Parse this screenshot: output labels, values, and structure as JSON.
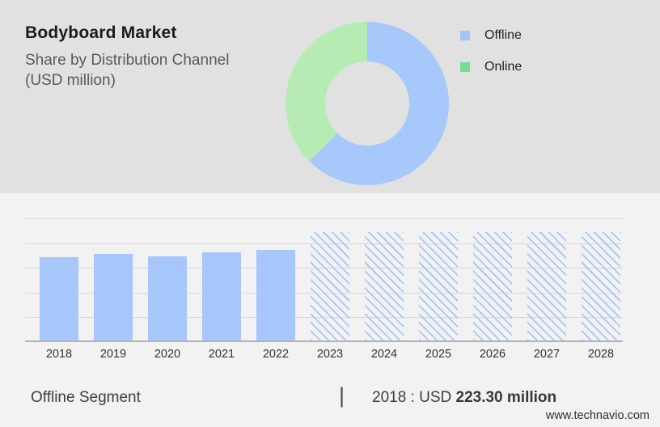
{
  "header": {
    "title": "Bodyboard Market",
    "subtitle_line1": "Share by Distribution Channel",
    "subtitle_line2": "(USD million)"
  },
  "legend": {
    "items": [
      {
        "label": "Offline",
        "color": "#a3c4f8"
      },
      {
        "label": "Online",
        "color": "#74dd94"
      }
    ]
  },
  "footer": {
    "segment_label": "Offline Segment",
    "divider": "|",
    "stat_prefix": "2018 : USD",
    "stat_value": "223.30 million",
    "website": "www.technavio.com"
  },
  "colors": {
    "panel_gray": "#e1e1e2",
    "page_bg": "#f2f2f3",
    "donut_offline": "#a6c8fb",
    "donut_online": "#b6ecb3",
    "bar_blue": "#a7c6fc",
    "hatch_blue": "#a9c7f5",
    "gridline": "#d8d8d9",
    "axis_line": "#b2b2b2"
  },
  "chart_data": [
    {
      "type": "pie",
      "subtype": "donut",
      "title": "Bodyboard Market — Share by Distribution Channel (USD million)",
      "slices": [
        {
          "label": "Offline",
          "percent": 62.5,
          "color": "#a6c8fb"
        },
        {
          "label": "Online",
          "percent": 37.5,
          "color": "#b6ecb3"
        }
      ],
      "legend_position": "right",
      "start_angle_deg": 0,
      "direction": "clockwise"
    },
    {
      "type": "bar",
      "categories": [
        "2018",
        "2019",
        "2020",
        "2021",
        "2022",
        "2023",
        "2024",
        "2025",
        "2026",
        "2027",
        "2028"
      ],
      "series": [
        {
          "name": "Offline segment size (USD million)",
          "values": [
            223.3,
            232,
            227.6,
            236.4,
            244,
            292,
            292,
            292,
            292,
            292,
            292
          ]
        }
      ],
      "forecast_from_index": 5,
      "forecast_style": "hatched placeholder bars, equal height, 2023-2028",
      "annotation": "2018 : USD 223.30 million",
      "ylim": [
        0,
        332
      ],
      "grid": true,
      "y_tick_labels_visible": false
    }
  ]
}
